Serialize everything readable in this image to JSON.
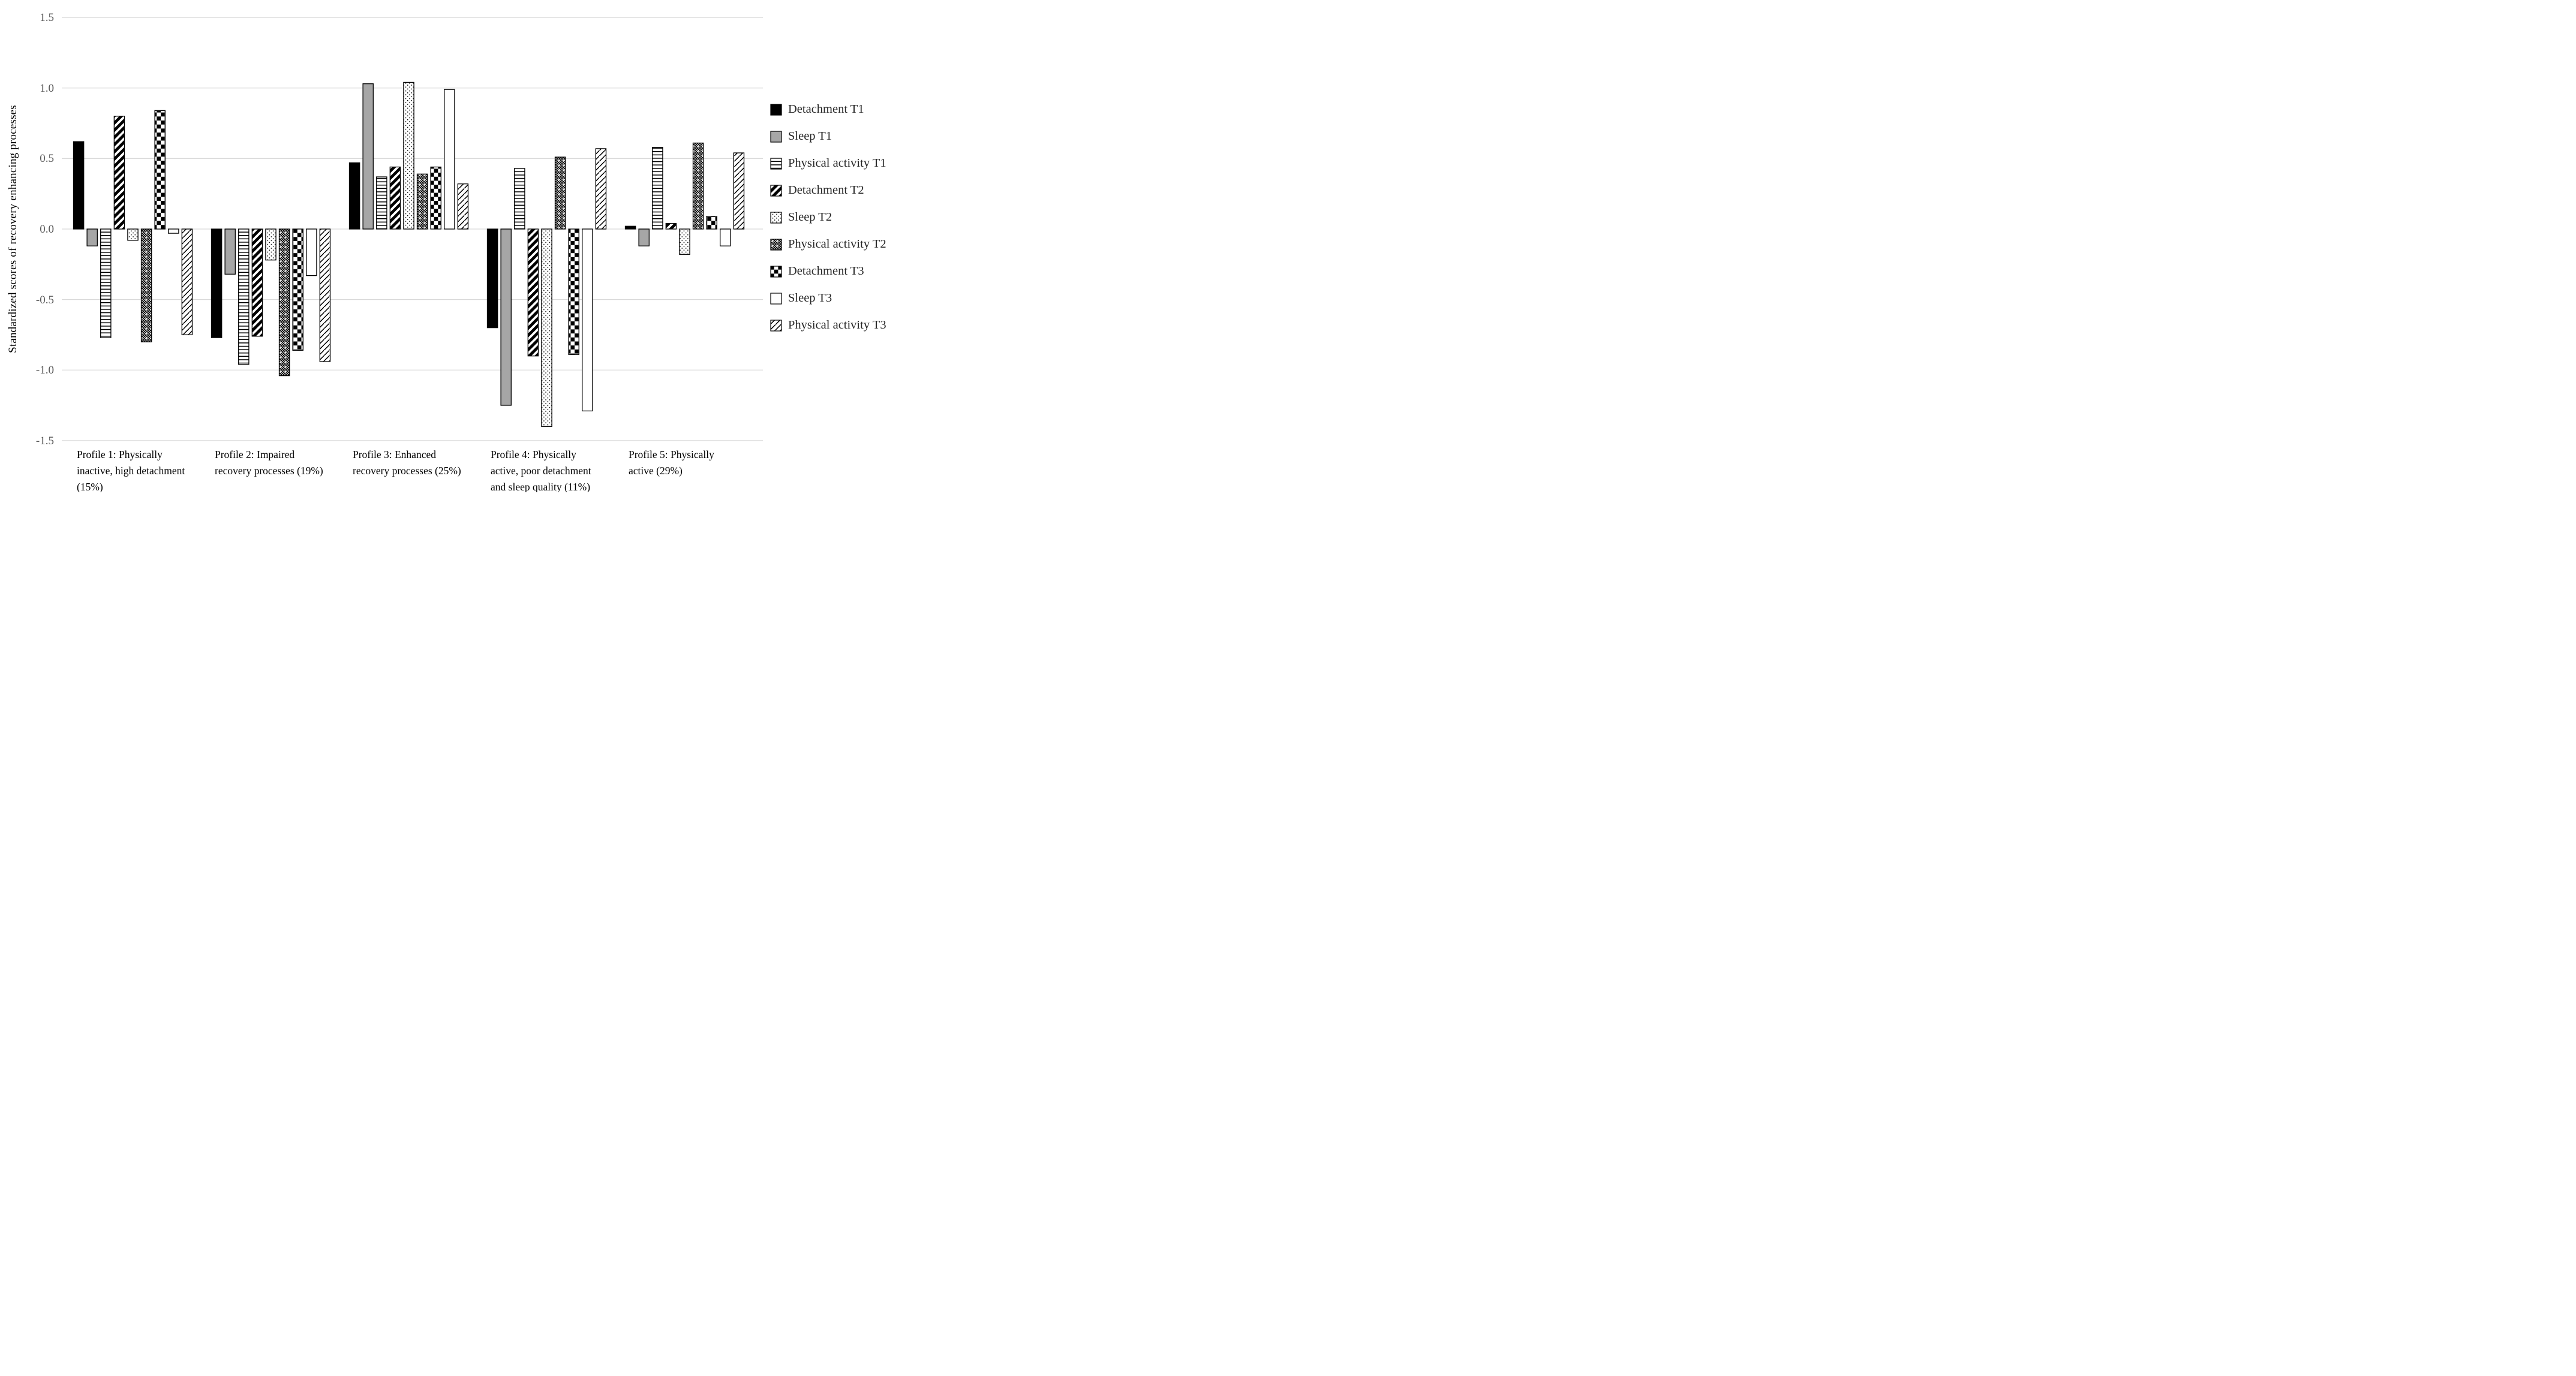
{
  "chart_data": {
    "type": "bar",
    "title": "",
    "ylabel": "Standardized scores of recovery enhancing processes",
    "xlabel": "",
    "ylim": [
      -1.5,
      1.5
    ],
    "ytick_step": 0.5,
    "yticks": [
      "1.5",
      "1.0",
      "0.5",
      "0.0",
      "-0.5",
      "-1.0",
      "-1.5"
    ],
    "grid": "horizontal light gray lines, every 0.5",
    "legend_position": "right",
    "categories": [
      "Profile 1: Physically inactive, high detachment (15%)",
      "Profile 2: Impaired recovery processes (19%)",
      "Profile 3: Enhanced recovery processes (25%)",
      "Profile 4: Physically active, poor detachment and sleep quality (11%)",
      "Profile 5: Physically active (29%)"
    ],
    "series": [
      {
        "name": "Detachment T1",
        "pattern": "solid-black",
        "values": [
          0.62,
          -0.77,
          0.47,
          -0.7,
          0.02
        ]
      },
      {
        "name": "Sleep T1",
        "pattern": "solid-gray",
        "values": [
          -0.12,
          -0.32,
          1.03,
          -1.25,
          -0.12
        ]
      },
      {
        "name": "Physical activity T1",
        "pattern": "hlines",
        "values": [
          -0.77,
          -0.96,
          0.37,
          0.43,
          0.58
        ]
      },
      {
        "name": "Detachment T2",
        "pattern": "diag-thick",
        "values": [
          0.8,
          -0.76,
          0.44,
          -0.9,
          0.04
        ]
      },
      {
        "name": "Sleep T2",
        "pattern": "dots",
        "values": [
          -0.08,
          -0.22,
          1.04,
          -1.4,
          -0.18
        ]
      },
      {
        "name": "Physical activity T2",
        "pattern": "dense-check",
        "values": [
          -0.8,
          -1.04,
          0.39,
          0.51,
          0.61
        ]
      },
      {
        "name": "Detachment T3",
        "pattern": "checkerboard",
        "values": [
          0.84,
          -0.86,
          0.44,
          -0.89,
          0.09
        ]
      },
      {
        "name": "Sleep T3",
        "pattern": "solid-white",
        "values": [
          -0.03,
          -0.33,
          0.99,
          -1.29,
          -0.12
        ]
      },
      {
        "name": "Physical activity T3",
        "pattern": "diag-dash",
        "values": [
          -0.75,
          -0.94,
          0.32,
          0.57,
          0.54
        ]
      }
    ],
    "colors": {
      "bar_border": "#000000",
      "solid_gray_fill": "#a6a6a6",
      "gridline": "#d9d9d9",
      "tick_label_text": "#595959",
      "category_label_text": "#000000",
      "legend_text": "#262626",
      "background": "#ffffff"
    }
  }
}
